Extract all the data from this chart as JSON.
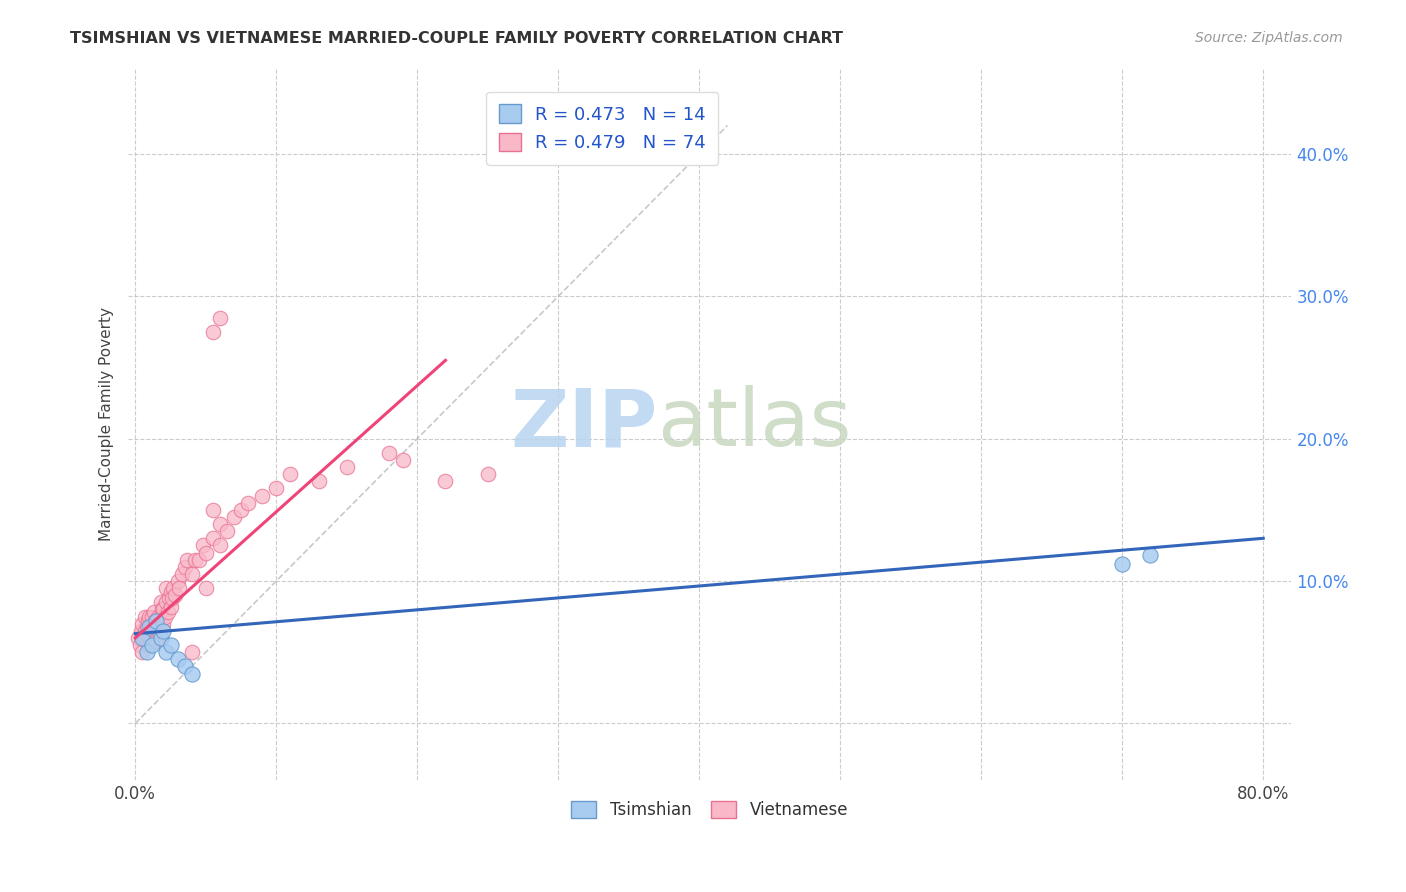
{
  "title": "TSIMSHIAN VS VIETNAMESE MARRIED-COUPLE FAMILY POVERTY CORRELATION CHART",
  "source": "Source: ZipAtlas.com",
  "ylabel": "Married-Couple Family Poverty",
  "xlim": [
    -0.005,
    0.82
  ],
  "ylim": [
    -0.04,
    0.46
  ],
  "xticks": [
    0.0,
    0.1,
    0.2,
    0.3,
    0.4,
    0.5,
    0.6,
    0.7,
    0.8
  ],
  "yticks": [
    0.0,
    0.1,
    0.2,
    0.3,
    0.4
  ],
  "tsimshian_color": "#A8CCF0",
  "tsimshian_edge_color": "#6699CC",
  "vietnamese_color": "#F8B8C8",
  "vietnamese_edge_color": "#E87090",
  "tsimshian_line_color": "#3366BB",
  "vietnamese_line_color": "#EE4477",
  "legend_r_tsimshian": "R = 0.473",
  "legend_n_tsimshian": "N = 14",
  "legend_r_vietnamese": "R = 0.479",
  "legend_n_vietnamese": "N = 74",
  "tsimshian_x": [
    0.005,
    0.008,
    0.01,
    0.012,
    0.015,
    0.018,
    0.02,
    0.022,
    0.025,
    0.03,
    0.035,
    0.04,
    0.7,
    0.72
  ],
  "tsimshian_y": [
    0.06,
    0.05,
    0.068,
    0.055,
    0.072,
    0.06,
    0.065,
    0.05,
    0.055,
    0.045,
    0.04,
    0.035,
    0.112,
    0.118
  ],
  "vietnamese_x": [
    0.002,
    0.003,
    0.004,
    0.005,
    0.005,
    0.006,
    0.007,
    0.007,
    0.008,
    0.008,
    0.009,
    0.009,
    0.01,
    0.01,
    0.01,
    0.011,
    0.011,
    0.012,
    0.012,
    0.013,
    0.013,
    0.014,
    0.014,
    0.015,
    0.015,
    0.016,
    0.016,
    0.017,
    0.018,
    0.018,
    0.019,
    0.02,
    0.02,
    0.021,
    0.022,
    0.022,
    0.023,
    0.024,
    0.025,
    0.025,
    0.026,
    0.027,
    0.028,
    0.03,
    0.031,
    0.033,
    0.035,
    0.037,
    0.04,
    0.042,
    0.045,
    0.048,
    0.05,
    0.055,
    0.055,
    0.06,
    0.06,
    0.065,
    0.07,
    0.075,
    0.08,
    0.09,
    0.1,
    0.11,
    0.13,
    0.15,
    0.18,
    0.19,
    0.22,
    0.25,
    0.055,
    0.06,
    0.05,
    0.04
  ],
  "vietnamese_y": [
    0.06,
    0.055,
    0.065,
    0.05,
    0.07,
    0.06,
    0.065,
    0.075,
    0.058,
    0.068,
    0.072,
    0.062,
    0.055,
    0.065,
    0.075,
    0.06,
    0.07,
    0.065,
    0.075,
    0.068,
    0.078,
    0.062,
    0.072,
    0.058,
    0.068,
    0.075,
    0.065,
    0.07,
    0.075,
    0.085,
    0.08,
    0.07,
    0.08,
    0.075,
    0.085,
    0.095,
    0.078,
    0.088,
    0.082,
    0.092,
    0.088,
    0.095,
    0.09,
    0.1,
    0.095,
    0.105,
    0.11,
    0.115,
    0.105,
    0.115,
    0.115,
    0.125,
    0.12,
    0.13,
    0.15,
    0.125,
    0.14,
    0.135,
    0.145,
    0.15,
    0.155,
    0.16,
    0.165,
    0.175,
    0.17,
    0.18,
    0.19,
    0.185,
    0.17,
    0.175,
    0.275,
    0.285,
    0.095,
    0.05
  ],
  "ts_line_x": [
    0.0,
    0.8
  ],
  "ts_line_y": [
    0.063,
    0.13
  ],
  "viet_line_x": [
    0.0,
    0.22
  ],
  "viet_line_y": [
    0.06,
    0.255
  ]
}
